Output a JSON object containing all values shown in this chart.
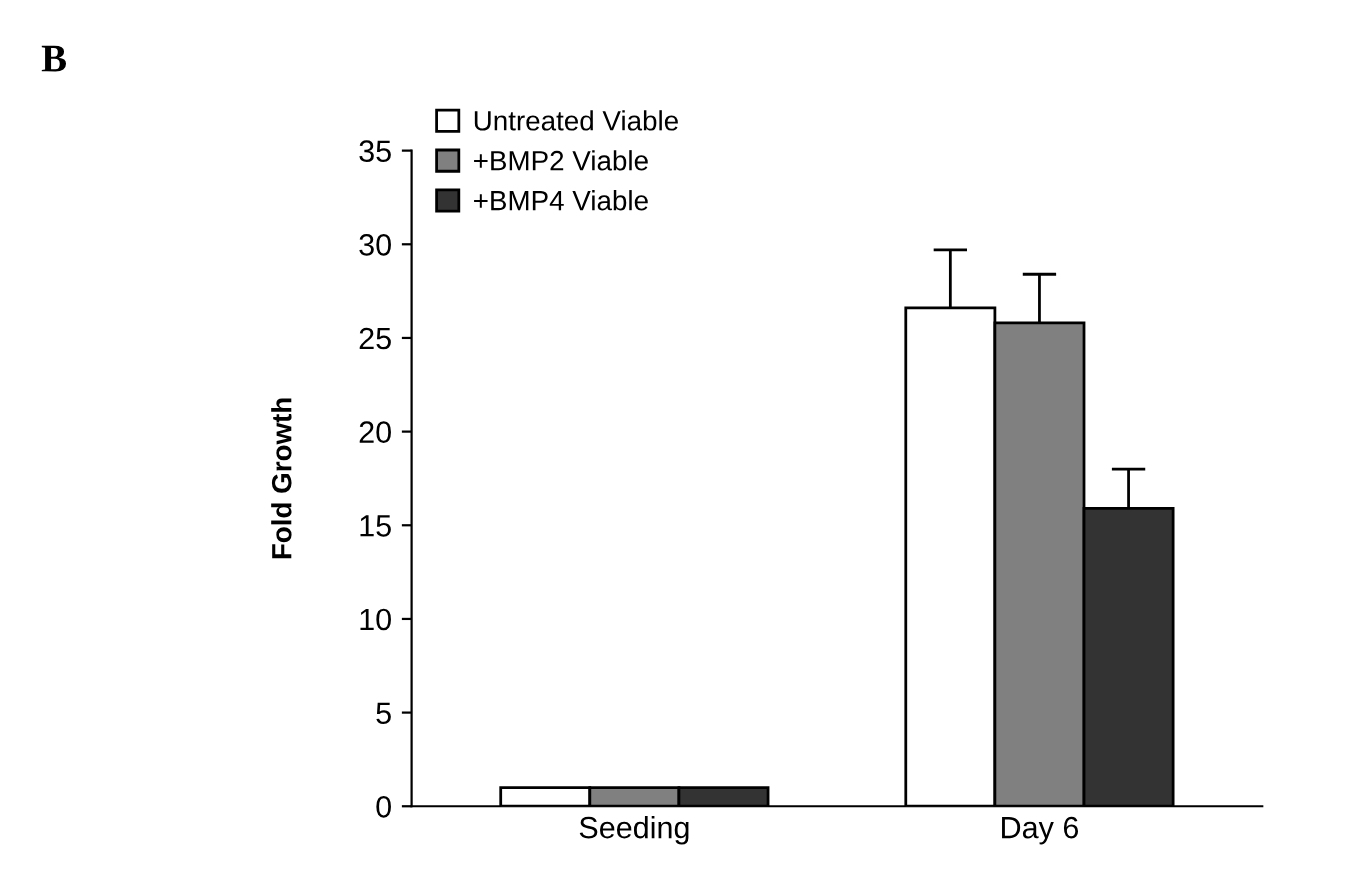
{
  "chart_data": {
    "type": "bar",
    "ylabel": "Fold Growth",
    "categories": [
      "Seeding",
      "Day 6"
    ],
    "series": [
      {
        "name": "Untreated Viable",
        "color": "#ffffff",
        "values": [
          1,
          26.6
        ],
        "errors": [
          null,
          3.1
        ]
      },
      {
        "name": "+BMP2 Viable",
        "color": "#808080",
        "values": [
          1,
          25.8
        ],
        "errors": [
          null,
          2.6
        ]
      },
      {
        "name": "+BMP4 Viable",
        "color": "#333333",
        "values": [
          1,
          15.9
        ],
        "errors": [
          null,
          2.1
        ]
      }
    ],
    "ylim": [
      0,
      35
    ],
    "yticks": [
      0,
      5,
      10,
      15,
      20,
      25,
      30,
      35
    ],
    "grid": false,
    "legend": "top left",
    "annotations": [
      "B"
    ]
  }
}
